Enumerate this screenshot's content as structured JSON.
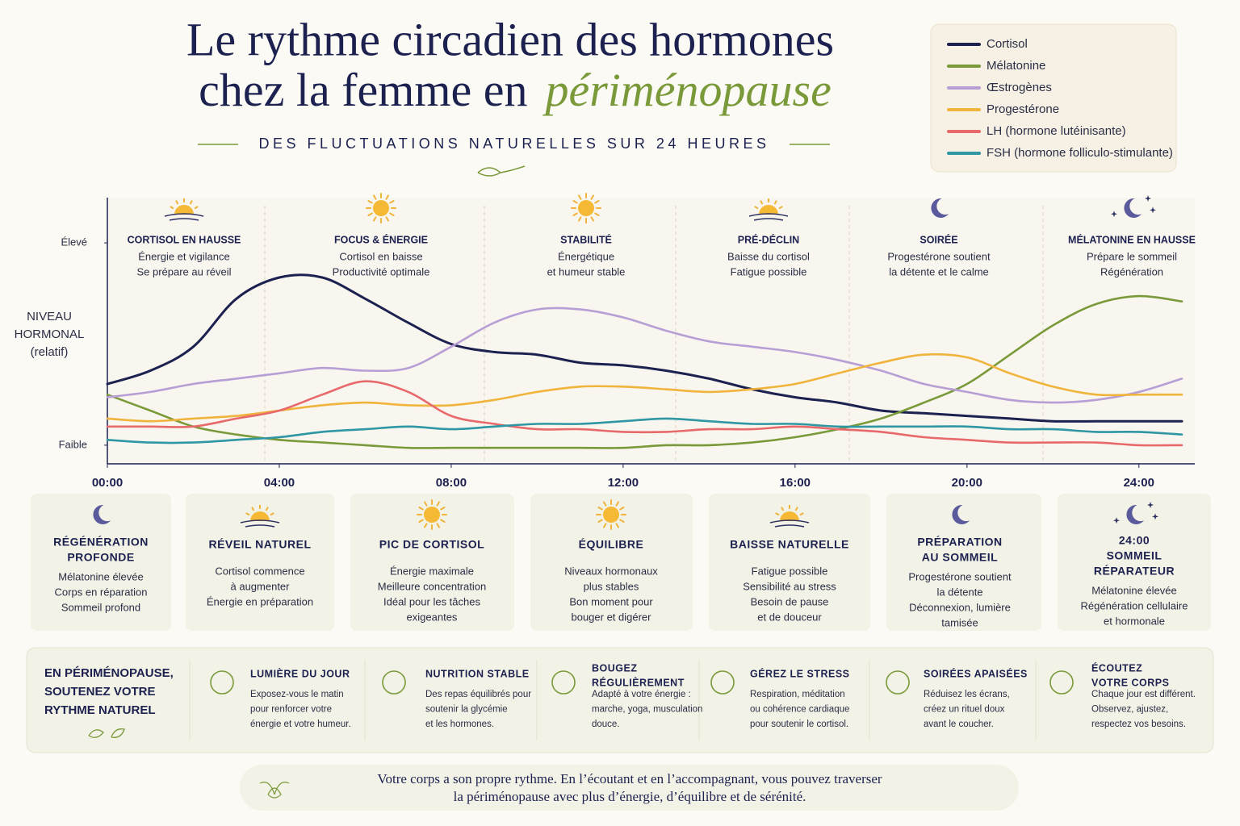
{
  "header": {
    "title": [
      "Le rythme circadien des hormones",
      "chez la femme en",
      "périménopause"
    ],
    "subtitle": "DES FLUCTUATIONS NATURELLES SUR 24 HEURES"
  },
  "chart_data": {
    "type": "line",
    "y_label": [
      "NIVEAU",
      "HORMONAL",
      "(relatif)"
    ],
    "x": [
      0,
      1,
      2,
      3,
      4,
      5,
      6,
      7,
      8,
      9,
      10,
      11,
      12,
      13,
      14,
      15,
      16,
      17,
      18,
      19,
      20,
      21,
      22,
      23,
      24,
      25
    ],
    "xlim": [
      0,
      25.3
    ],
    "xticks": [
      {
        "value": 0,
        "label": "00:00"
      },
      {
        "value": 4,
        "label": "04:00"
      },
      {
        "value": 8,
        "label": "08:00"
      },
      {
        "value": 12,
        "label": "12:00"
      },
      {
        "value": 16,
        "label": "16:00"
      },
      {
        "value": 20,
        "label": "20:00"
      },
      {
        "value": 24,
        "label": "24:00"
      }
    ],
    "ylim": [
      0,
      100
    ],
    "yticks": [
      {
        "value": 7,
        "label": "Faible"
      },
      {
        "value": 83,
        "label": "Élevé"
      }
    ],
    "grid": false,
    "legend": "upper right",
    "series": [
      {
        "name": "Cortisol",
        "color": "#1c2150",
        "values": [
          30,
          35,
          44,
          62,
          70,
          70,
          62,
          53,
          45,
          42,
          41,
          38,
          37,
          35,
          32,
          28,
          25,
          23,
          20,
          19,
          18,
          17,
          16,
          16,
          16,
          16
        ]
      },
      {
        "name": "Mélatonine",
        "color": "#7a9a3a",
        "values": [
          26,
          20,
          14,
          11,
          9,
          8,
          7,
          6,
          6,
          6,
          6,
          6,
          6,
          7,
          7,
          8,
          10,
          13,
          17,
          23,
          30,
          41,
          52,
          60,
          63,
          61
        ]
      },
      {
        "name": "Œstrogènes",
        "color": "#b79fd6",
        "values": [
          25,
          27,
          30,
          32,
          34,
          36,
          35,
          36,
          44,
          53,
          58,
          58,
          55,
          50,
          46,
          44,
          42,
          39,
          35,
          30,
          27,
          24,
          23,
          24,
          27,
          32
        ]
      },
      {
        "name": "Progestérone",
        "color": "#f0b43c",
        "values": [
          17,
          16,
          17,
          18,
          20,
          22,
          23,
          22,
          22,
          24,
          27,
          29,
          29,
          28,
          27,
          28,
          30,
          34,
          38,
          41,
          40,
          34,
          29,
          26,
          26,
          26
        ]
      },
      {
        "name": "LH (hormone lutéinisante)",
        "color": "#e8696b",
        "values": [
          14,
          14,
          14,
          17,
          20,
          26,
          31,
          27,
          18,
          15,
          13,
          13,
          12,
          12,
          13,
          13,
          14,
          13,
          12,
          10,
          9,
          8,
          8,
          8,
          7,
          7
        ]
      },
      {
        "name": "FSH (hormone folliculo-stimulante)",
        "color": "#2e97a3",
        "values": [
          9,
          8,
          8,
          9,
          10,
          12,
          13,
          14,
          13,
          14,
          15,
          15,
          16,
          17,
          16,
          15,
          15,
          14,
          14,
          14,
          14,
          13,
          13,
          12,
          12,
          11
        ]
      }
    ],
    "annotations": [
      {
        "title": "CORTISOL EN HAUSSE",
        "lines": [
          "Énergie et vigilance",
          "Se prépare au réveil"
        ]
      },
      {
        "title": "FOCUS & ÉNERGIE",
        "lines": [
          "Cortisol en baisse",
          "Productivité optimale"
        ]
      },
      {
        "title": "STABILITÉ",
        "lines": [
          "Énergétique",
          "et humeur stable"
        ]
      },
      {
        "title": "PRÉ-DÉCLIN",
        "lines": [
          "Baisse du cortisol",
          "Fatigue possible"
        ]
      },
      {
        "title": "SOIRÉE",
        "lines": [
          "Progestérone soutient",
          "la détente et le calme"
        ]
      },
      {
        "title": "MÉLATONINE EN HAUSSE",
        "lines": [
          "Prépare le sommeil",
          "Régénération"
        ]
      }
    ]
  },
  "phase_cards": [
    {
      "title": [
        "RÉGÉNÉRATION",
        "PROFONDE"
      ],
      "lines": [
        "Mélatonine élevée",
        "Corps en réparation",
        "Sommeil profond"
      ]
    },
    {
      "title": [
        "RÉVEIL NATUREL"
      ],
      "lines": [
        "Cortisol commence",
        "à augmenter",
        "Énergie en préparation"
      ]
    },
    {
      "title": [
        "PIC DE CORTISOL"
      ],
      "lines": [
        "Énergie maximale",
        "Meilleure concentration",
        "Idéal pour les tâches",
        "exigeantes"
      ]
    },
    {
      "title": [
        "ÉQUILIBRE"
      ],
      "lines": [
        "Niveaux hormonaux",
        "plus stables",
        "Bon moment pour",
        "bouger et digérer"
      ]
    },
    {
      "title": [
        "BAISSE NATURELLE"
      ],
      "lines": [
        "Fatigue possible",
        "Sensibilité au stress",
        "Besoin de pause",
        "et de douceur"
      ]
    },
    {
      "title": [
        "PRÉPARATION",
        "AU SOMMEIL"
      ],
      "lines": [
        "Progestérone soutient",
        "la détente",
        "Déconnexion, lumière",
        "tamisée"
      ]
    },
    {
      "title": [
        "24:00",
        "SOMMEIL",
        "RÉPARATEUR"
      ],
      "lines": [
        "Mélatonine élevée",
        "Régénération cellulaire",
        "et hormonale"
      ]
    }
  ],
  "tips": {
    "heading": [
      "EN PÉRIMÉNOPAUSE,",
      "SOUTENEZ VOTRE",
      "RYTHME NATUREL"
    ],
    "items": [
      {
        "title": [
          "LUMIÈRE DU JOUR"
        ],
        "lines": [
          "Exposez-vous le matin",
          "pour renforcer votre",
          "énergie et votre humeur."
        ]
      },
      {
        "title": [
          "NUTRITION STABLE"
        ],
        "lines": [
          "Des repas équilibrés pour",
          "soutenir la glycémie",
          "et les hormones."
        ]
      },
      {
        "title": [
          "BOUGEZ",
          "RÉGULIÈREMENT"
        ],
        "lines": [
          "Adapté à votre énergie :",
          "marche, yoga, musculation",
          "douce."
        ]
      },
      {
        "title": [
          "GÉREZ LE STRESS"
        ],
        "lines": [
          "Respiration, méditation",
          "ou cohérence cardiaque",
          "pour soutenir le cortisol."
        ]
      },
      {
        "title": [
          "SOIRÉES APAISÉES"
        ],
        "lines": [
          "Réduisez les écrans,",
          "créez un rituel doux",
          "avant le coucher."
        ]
      },
      {
        "title": [
          "ÉCOUTEZ",
          "VOTRE CORPS"
        ],
        "lines": [
          "Chaque jour est différent.",
          "Observez, ajustez,",
          "respectez vos besoins."
        ]
      }
    ]
  },
  "footer": [
    "Votre corps a son propre rythme. En l’écoutant et en l’accompagnant, vous pouvez traverser",
    "la périménopause avec plus d’énergie, d’équilibre et de sérénité."
  ]
}
